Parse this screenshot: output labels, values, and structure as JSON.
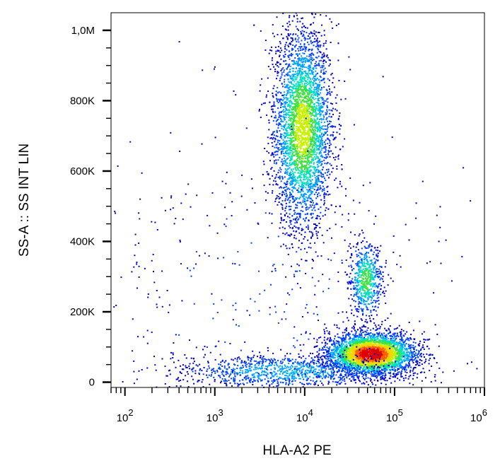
{
  "chart_data": {
    "type": "scatter",
    "subtype": "flow-cytometry-density-dot-plot",
    "title": "",
    "xlabel": "HLA-A2 PE",
    "ylabel": "SS-A :: SS INT LIN",
    "x_scale": "log",
    "y_scale": "linear",
    "xlim": [
      70,
      1000000
    ],
    "ylim": [
      -15000,
      1050000
    ],
    "grid": false,
    "legend": "none",
    "x_ticks": [
      {
        "value": 100,
        "base": "10",
        "exp": "2"
      },
      {
        "value": 1000,
        "base": "10",
        "exp": "3"
      },
      {
        "value": 10000,
        "base": "10",
        "exp": "4"
      },
      {
        "value": 100000,
        "base": "10",
        "exp": "5"
      },
      {
        "value": 1000000,
        "base": "10",
        "exp": "6"
      }
    ],
    "y_ticks": [
      {
        "value": 0,
        "label": "0"
      },
      {
        "value": 200000,
        "label": "200K"
      },
      {
        "value": 400000,
        "label": "400K"
      },
      {
        "value": 600000,
        "label": "600K"
      },
      {
        "value": 800000,
        "label": "800K"
      },
      {
        "value": 1000000,
        "label": "1,0M"
      }
    ],
    "density_colors": [
      "#0000c8",
      "#0040ff",
      "#00a0ff",
      "#00e0c0",
      "#40e040",
      "#c8f000",
      "#ffd000",
      "#ff6000",
      "#e00000"
    ],
    "populations": [
      {
        "x_center": 9500,
        "x_spread_decades": 0.16,
        "y_center": 720000,
        "y_spread": 140000,
        "relative_count": 0.4,
        "peak_density": 0.62
      },
      {
        "x_center": 48000,
        "x_spread_decades": 0.09,
        "y_center": 290000,
        "y_spread": 55000,
        "relative_count": 0.07,
        "peak_density": 0.5
      },
      {
        "x_center": 55000,
        "x_spread_decades": 0.25,
        "y_center": 80000,
        "y_spread": 30000,
        "relative_count": 0.36,
        "peak_density": 1.0
      },
      {
        "x_center": 6000,
        "x_spread_decades": 0.6,
        "y_center": 30000,
        "y_spread": 25000,
        "relative_count": 0.12,
        "peak_density": 0.3
      },
      {
        "x_center": 3000,
        "x_spread_decades": 1.2,
        "y_center": 250000,
        "y_spread": 250000,
        "relative_count": 0.05,
        "peak_density": 0.1
      }
    ]
  }
}
